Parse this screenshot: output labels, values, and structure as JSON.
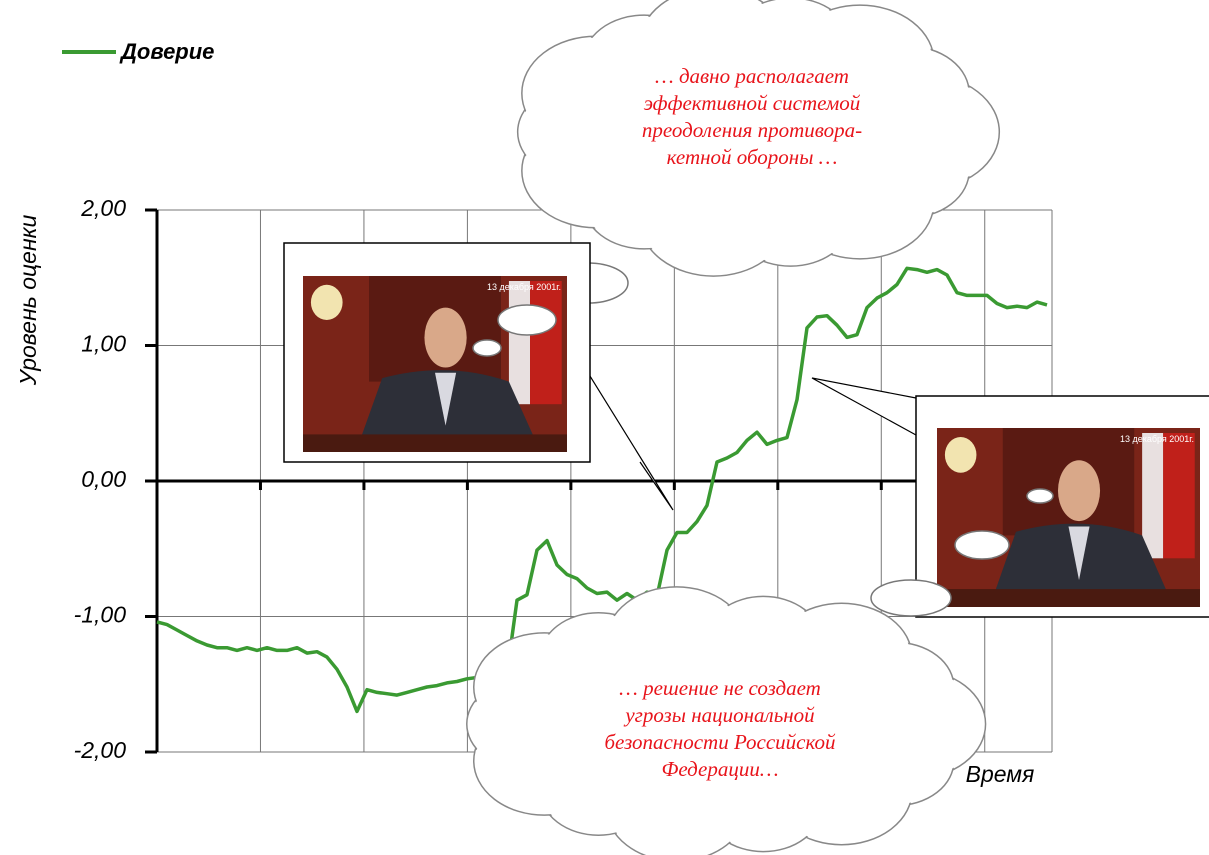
{
  "chart_data": {
    "type": "line",
    "y_label": "Уровень оценки",
    "x_label": "Время",
    "legend_position": "top-left",
    "grid": true,
    "ylim": [
      -2,
      2
    ],
    "yticks": [
      {
        "value": -2,
        "label": "-2,00"
      },
      {
        "value": -1,
        "label": "-1,00"
      },
      {
        "value": 0,
        "label": "0,00"
      },
      {
        "value": 1,
        "label": "1,00"
      },
      {
        "value": 2,
        "label": "2,00"
      }
    ],
    "categories": [
      null,
      null,
      null,
      null,
      null,
      null,
      null,
      null,
      null,
      null,
      null,
      null,
      null,
      null,
      null,
      null,
      null,
      null,
      null,
      null,
      null,
      null,
      null,
      null,
      null,
      null,
      null,
      null,
      null,
      null,
      null,
      null,
      null,
      null,
      null,
      null,
      null,
      null,
      null,
      null,
      null,
      null,
      null,
      null,
      null,
      null,
      null,
      null,
      null,
      null,
      null,
      null,
      null,
      null,
      null,
      null,
      null,
      null,
      null,
      null,
      null,
      null,
      null,
      null,
      null,
      null,
      null,
      null,
      null,
      null,
      null,
      null,
      null,
      null,
      null,
      null,
      null,
      null,
      null,
      null,
      null,
      null,
      null,
      null,
      null,
      null,
      null,
      null,
      null,
      null
    ],
    "series": [
      {
        "name": "Доверие",
        "color": "#3a9a32",
        "values": [
          -1.04,
          -1.06,
          -1.1,
          -1.14,
          -1.18,
          -1.21,
          -1.23,
          -1.23,
          -1.25,
          -1.23,
          -1.25,
          -1.23,
          -1.25,
          -1.25,
          -1.23,
          -1.27,
          -1.26,
          -1.3,
          -1.39,
          -1.52,
          -1.7,
          -1.54,
          -1.56,
          -1.57,
          -1.58,
          -1.56,
          -1.54,
          -1.52,
          -1.51,
          -1.49,
          -1.48,
          -1.46,
          -1.45,
          -1.44,
          -1.45,
          -1.42,
          -0.88,
          -0.84,
          -0.51,
          -0.44,
          -0.62,
          -0.69,
          -0.72,
          -0.79,
          -0.83,
          -0.82,
          -0.88,
          -0.83,
          -0.88,
          -0.82,
          -0.85,
          -0.51,
          -0.38,
          -0.38,
          -0.3,
          -0.18,
          0.14,
          0.17,
          0.21,
          0.3,
          0.36,
          0.27,
          0.3,
          0.32,
          0.6,
          1.13,
          1.21,
          1.22,
          1.15,
          1.06,
          1.08,
          1.28,
          1.35,
          1.39,
          1.45,
          1.57,
          1.56,
          1.54,
          1.56,
          1.52,
          1.39,
          1.37,
          1.37,
          1.37,
          1.31,
          1.28,
          1.29,
          1.28,
          1.32,
          1.3
        ]
      }
    ],
    "annotations": {
      "clouds": [
        {
          "lines": [
            "… давно располагает",
            "эффективной системой",
            "преодоления противора-",
            "кетной обороны …"
          ]
        },
        {
          "lines": [
            "… решение не создает",
            "угрозы национальной",
            "безопасности Российской",
            "Федерации…"
          ]
        }
      ],
      "photos": [
        {
          "date": "13 декабря 2001г."
        },
        {
          "date": "13 декабря 2001г."
        }
      ]
    }
  }
}
